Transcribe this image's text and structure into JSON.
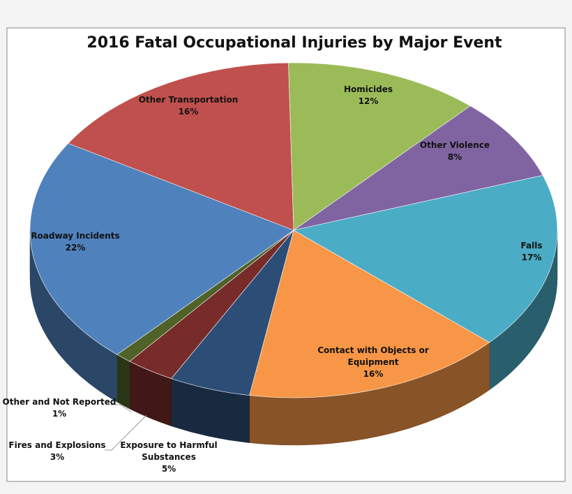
{
  "chart_data": {
    "type": "pie",
    "title": "2016 Fatal Occupational Injuries by Major Event",
    "categories": [
      "Homicides",
      "Other Violence",
      "Falls",
      "Contact with Objects or Equipment",
      "Exposure to Harmful Substances",
      "Fires and Explosions",
      "Other and Not Reported",
      "Roadway Incidents",
      "Other Transportation"
    ],
    "values": [
      12,
      8,
      17,
      16,
      5,
      3,
      1,
      22,
      16
    ],
    "value_labels": [
      "12%",
      "8%",
      "17%",
      "16%",
      "5%",
      "3%",
      "1%",
      "22%",
      "16%"
    ],
    "colors": [
      "#9bbb59",
      "#8064a2",
      "#4bacc6",
      "#f79646",
      "#2c4d75",
      "#772c2a",
      "#4f6228",
      "#4f81bd",
      "#c0504d"
    ]
  }
}
